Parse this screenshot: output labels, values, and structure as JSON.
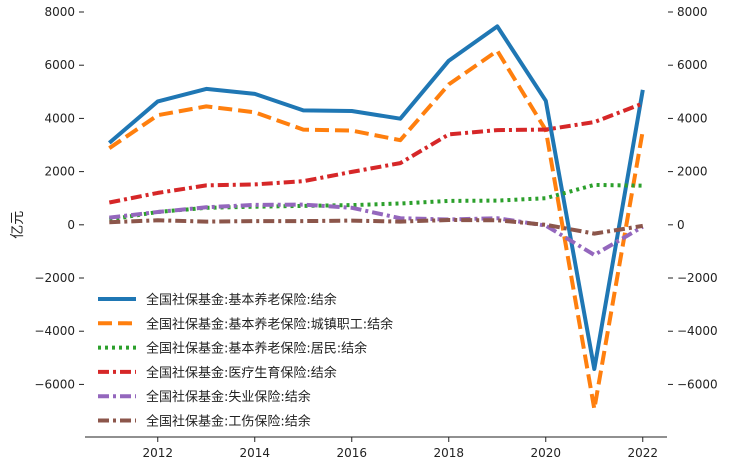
{
  "chart_data": {
    "type": "line",
    "title": "",
    "xlabel": "",
    "ylabel": "亿元",
    "ylim": [
      -7300,
      8000
    ],
    "xlim": [
      2010.5,
      2022.5
    ],
    "x_ticks": [
      2012,
      2014,
      2016,
      2018,
      2020,
      2022
    ],
    "y_ticks": [
      -6000,
      -4000,
      -2000,
      0,
      2000,
      4000,
      6000,
      8000
    ],
    "y_ticks_right": [
      -6000,
      -4000,
      -2000,
      0,
      2000,
      4000,
      6000,
      8000
    ],
    "legend_position": "lower-left",
    "x": [
      2011,
      2012,
      2013,
      2014,
      2015,
      2016,
      2017,
      2018,
      2019,
      2020,
      2021,
      2022
    ],
    "series": [
      {
        "name": "全国社保基金:基本养老保险:结余",
        "color": "#1f77b4",
        "dash": "solid",
        "values": [
          3080,
          4640,
          5110,
          4920,
          4300,
          4280,
          3990,
          6170,
          7460,
          4660,
          -5420,
          5070
        ]
      },
      {
        "name": "全国社保基金:基本养老保险:城镇职工:结余",
        "color": "#ff7f0e",
        "dash": "dashed",
        "values": [
          2880,
          4120,
          4450,
          4230,
          3580,
          3540,
          3180,
          5280,
          6540,
          3560,
          -6920,
          3540
        ]
      },
      {
        "name": "全国社保基金:基本养老保险:居民:结余",
        "color": "#2ca02c",
        "dash": "dotted",
        "values": [
          200,
          480,
          640,
          680,
          710,
          740,
          800,
          900,
          910,
          1000,
          1500,
          1470
        ]
      },
      {
        "name": "全国社保基金:医疗生育保险:结余",
        "color": "#d62728",
        "dash": "dashdot",
        "values": [
          840,
          1200,
          1480,
          1520,
          1640,
          1990,
          2320,
          3400,
          3560,
          3580,
          3860,
          4560
        ]
      },
      {
        "name": "全国社保基金:失业保险:结余",
        "color": "#9467bd",
        "dash": "dashdot",
        "values": [
          270,
          480,
          660,
          750,
          760,
          640,
          250,
          200,
          250,
          -30,
          -1130,
          -70
        ]
      },
      {
        "name": "全国社保基金:工伤保险:结余",
        "color": "#8c564b",
        "dash": "dashdot",
        "values": [
          100,
          170,
          120,
          140,
          140,
          160,
          120,
          180,
          170,
          0,
          -330,
          -40
        ]
      }
    ]
  }
}
